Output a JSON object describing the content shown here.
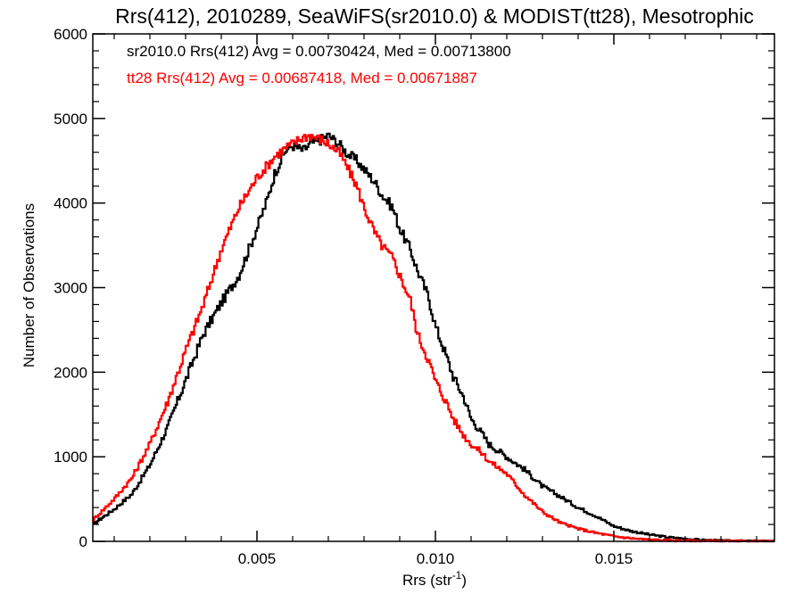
{
  "chart_data": {
    "type": "line",
    "title": "Rrs(412), 2010289, SeaWiFS(sr2010.0) & MODIST(tt28), Mesotrophic",
    "xlabel_main": "Rrs (str",
    "xlabel_sup": "-1",
    "xlabel_close": ")",
    "ylabel": "Number of Observations",
    "xlim": [
      0.0004,
      0.0195
    ],
    "ylim": [
      0,
      6000
    ],
    "xticks": [
      0.005,
      0.01,
      0.015
    ],
    "xtick_labels": [
      "0.005",
      "0.010",
      "0.015"
    ],
    "yticks": [
      0,
      1000,
      2000,
      3000,
      4000,
      5000,
      6000
    ],
    "ytick_labels": [
      "0",
      "1000",
      "2000",
      "3000",
      "4000",
      "5000",
      "6000"
    ],
    "legend_placement": "top-left",
    "annotations": [
      {
        "text": "sr2010.0 Rrs(412) Avg = 0.00730424, Med = 0.00713800",
        "color": "#000000"
      },
      {
        "text": "tt28 Rrs(412) Avg = 0.00687418, Med = 0.00671887",
        "color": "#ff0000"
      }
    ],
    "series": [
      {
        "color": "#000000",
        "points": [
          [
            0.0004,
            200
          ],
          [
            0.001,
            380
          ],
          [
            0.0015,
            560
          ],
          [
            0.002,
            900
          ],
          [
            0.0025,
            1350
          ],
          [
            0.003,
            1900
          ],
          [
            0.0035,
            2450
          ],
          [
            0.004,
            2820
          ],
          [
            0.0045,
            3150
          ],
          [
            0.005,
            3700
          ],
          [
            0.0053,
            4050
          ],
          [
            0.0055,
            4350
          ],
          [
            0.0058,
            4620
          ],
          [
            0.006,
            4680
          ],
          [
            0.0063,
            4620
          ],
          [
            0.0065,
            4700
          ],
          [
            0.0068,
            4750
          ],
          [
            0.007,
            4800
          ],
          [
            0.0073,
            4700
          ],
          [
            0.0075,
            4600
          ],
          [
            0.0078,
            4500
          ],
          [
            0.008,
            4400
          ],
          [
            0.0083,
            4250
          ],
          [
            0.0085,
            4100
          ],
          [
            0.0088,
            3950
          ],
          [
            0.009,
            3700
          ],
          [
            0.0093,
            3450
          ],
          [
            0.0095,
            3200
          ],
          [
            0.0098,
            2900
          ],
          [
            0.01,
            2550
          ],
          [
            0.0103,
            2200
          ],
          [
            0.0105,
            1950
          ],
          [
            0.0108,
            1700
          ],
          [
            0.011,
            1450
          ],
          [
            0.0113,
            1280
          ],
          [
            0.0115,
            1150
          ],
          [
            0.012,
            1000
          ],
          [
            0.0125,
            850
          ],
          [
            0.013,
            650
          ],
          [
            0.0135,
            530
          ],
          [
            0.014,
            400
          ],
          [
            0.0145,
            300
          ],
          [
            0.015,
            180
          ],
          [
            0.0155,
            120
          ],
          [
            0.016,
            80
          ],
          [
            0.0165,
            50
          ],
          [
            0.017,
            30
          ],
          [
            0.0175,
            15
          ],
          [
            0.018,
            8
          ],
          [
            0.0185,
            4
          ],
          [
            0.019,
            2
          ],
          [
            0.0195,
            1
          ]
        ]
      },
      {
        "color": "#ff0000",
        "points": [
          [
            0.0004,
            250
          ],
          [
            0.001,
            500
          ],
          [
            0.0015,
            750
          ],
          [
            0.002,
            1150
          ],
          [
            0.0025,
            1650
          ],
          [
            0.003,
            2250
          ],
          [
            0.0035,
            2800
          ],
          [
            0.004,
            3450
          ],
          [
            0.0045,
            3950
          ],
          [
            0.005,
            4300
          ],
          [
            0.0053,
            4450
          ],
          [
            0.0055,
            4550
          ],
          [
            0.0058,
            4650
          ],
          [
            0.006,
            4700
          ],
          [
            0.0063,
            4780
          ],
          [
            0.0065,
            4800
          ],
          [
            0.0068,
            4750
          ],
          [
            0.007,
            4700
          ],
          [
            0.0073,
            4600
          ],
          [
            0.0075,
            4450
          ],
          [
            0.0078,
            4200
          ],
          [
            0.008,
            3950
          ],
          [
            0.0083,
            3650
          ],
          [
            0.0085,
            3500
          ],
          [
            0.0088,
            3350
          ],
          [
            0.009,
            3150
          ],
          [
            0.0093,
            2850
          ],
          [
            0.0095,
            2450
          ],
          [
            0.0098,
            2150
          ],
          [
            0.01,
            1900
          ],
          [
            0.0103,
            1650
          ],
          [
            0.0105,
            1450
          ],
          [
            0.0108,
            1250
          ],
          [
            0.011,
            1150
          ],
          [
            0.0113,
            1050
          ],
          [
            0.0115,
            950
          ],
          [
            0.012,
            800
          ],
          [
            0.0125,
            550
          ],
          [
            0.013,
            350
          ],
          [
            0.0135,
            220
          ],
          [
            0.014,
            150
          ],
          [
            0.0145,
            100
          ],
          [
            0.015,
            60
          ],
          [
            0.0155,
            35
          ],
          [
            0.016,
            20
          ],
          [
            0.0165,
            12
          ],
          [
            0.017,
            8
          ],
          [
            0.0175,
            5
          ],
          [
            0.018,
            3
          ],
          [
            0.0185,
            2
          ],
          [
            0.019,
            1
          ],
          [
            0.0195,
            0
          ]
        ]
      }
    ]
  }
}
